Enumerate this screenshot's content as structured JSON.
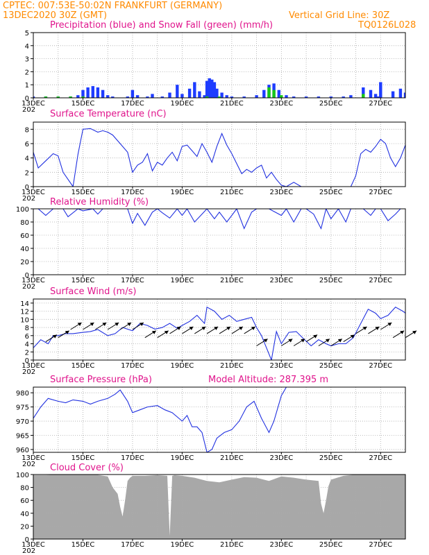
{
  "header": {
    "line1": "CPTEC:   007:53E-50:02N   FRANKFURT (GERMANY)",
    "line2_left": "13DEC2020 30Z (GMT)",
    "line2_right": "Vertical Grid Line: 30Z",
    "code": "TQ0126L028"
  },
  "colors": {
    "header_text": "#ff8a00",
    "title_text": "#e0148c",
    "precip": "#1e3cff",
    "snow": "#18c818",
    "line": "#2030e0",
    "arrow": "#000000",
    "cloud": "#a8a8a8"
  },
  "x_axis": {
    "days": [
      "13DEC",
      "15DEC",
      "17DEC",
      "19DEC",
      "21DEC",
      "23DEC",
      "25DEC",
      "27DEC"
    ],
    "first_tick_fragment": "202"
  },
  "chart_data": [
    {
      "type": "bar",
      "title": "Precipitation (blue) and Snow Fall (green) (mm/h)",
      "ylim": [
        0,
        5
      ],
      "yticks": [
        0,
        1,
        2,
        3,
        4,
        5
      ],
      "x_range": [
        13,
        28
      ],
      "series": [
        {
          "name": "Precipitation",
          "x": [
            13.0,
            13.5,
            14.0,
            14.5,
            14.8,
            15.0,
            15.2,
            15.4,
            15.6,
            15.8,
            16.0,
            16.2,
            16.8,
            17.0,
            17.2,
            17.6,
            17.8,
            18.2,
            18.5,
            18.8,
            19.0,
            19.3,
            19.5,
            19.7,
            19.9,
            20.0,
            20.1,
            20.2,
            20.3,
            20.4,
            20.6,
            20.8,
            21.0,
            21.5,
            22.0,
            22.3,
            22.5,
            22.7,
            22.9,
            23.2,
            23.5,
            24.0,
            24.5,
            25.0,
            25.5,
            25.8,
            26.3,
            26.6,
            26.8,
            26.9,
            27.0,
            27.5,
            27.8,
            28.0
          ],
          "values": [
            0.1,
            0.1,
            0.1,
            0.1,
            0.2,
            0.6,
            0.8,
            0.9,
            0.8,
            0.6,
            0.2,
            0.1,
            0.1,
            0.6,
            0.2,
            0.1,
            0.3,
            0.1,
            0.4,
            1.0,
            0.3,
            0.7,
            1.2,
            0.5,
            0.2,
            1.3,
            1.5,
            1.4,
            1.2,
            0.7,
            0.4,
            0.2,
            0.1,
            0.1,
            0.2,
            0.6,
            1.0,
            1.1,
            0.6,
            0.2,
            0.1,
            0.1,
            0.1,
            0.1,
            0.1,
            0.2,
            0.8,
            0.6,
            0.3,
            0.1,
            1.2,
            0.5,
            0.7,
            0.4
          ]
        },
        {
          "name": "Snow Fall",
          "x": [
            13.5,
            14.0,
            14.5,
            15.0,
            20.0,
            20.5,
            22.5,
            22.7,
            23.0,
            26.3
          ],
          "values": [
            0.1,
            0.1,
            0.1,
            0.1,
            0.1,
            0.1,
            0.8,
            0.6,
            0.2,
            0.3
          ]
        }
      ]
    },
    {
      "type": "line",
      "title": "Surface Temperature (nC)",
      "ylim": [
        0,
        9
      ],
      "yticks": [
        0,
        2,
        4,
        6,
        8
      ],
      "x_range": [
        13,
        28
      ],
      "series": [
        {
          "x": [
            13.0,
            13.2,
            13.5,
            13.8,
            14.0,
            14.2,
            14.6,
            14.8,
            15.0,
            15.3,
            15.6,
            15.8,
            16.0,
            16.2,
            16.5,
            16.8,
            17.0,
            17.2,
            17.4,
            17.6,
            17.8,
            18.0,
            18.2,
            18.4,
            18.6,
            18.8,
            19.0,
            19.2,
            19.4,
            19.6,
            19.8,
            20.0,
            20.2,
            20.4,
            20.6,
            20.8,
            21.0,
            21.2,
            21.4,
            21.6,
            21.8,
            22.0,
            22.2,
            22.4,
            22.6,
            22.8,
            23.0,
            23.2,
            23.5,
            23.8,
            24.0,
            24.5,
            25.0,
            25.3,
            25.6,
            25.8,
            26.0,
            26.2,
            26.4,
            26.6,
            26.8,
            27.0,
            27.2,
            27.4,
            27.6,
            27.8,
            28.0
          ],
          "y": [
            4.8,
            2.6,
            3.6,
            4.6,
            4.3,
            2.0,
            0,
            4.5,
            8.0,
            8.1,
            7.6,
            7.8,
            7.6,
            7.2,
            6.0,
            4.8,
            2.0,
            3.0,
            3.4,
            4.6,
            2.2,
            3.4,
            3.0,
            4.0,
            4.8,
            3.6,
            5.6,
            5.8,
            5.0,
            4.2,
            6.0,
            4.8,
            3.4,
            5.6,
            7.4,
            5.8,
            4.6,
            3.2,
            1.8,
            2.4,
            2.0,
            2.6,
            3.0,
            1.2,
            2.0,
            1.0,
            0.2,
            0.0,
            0.6,
            0,
            0,
            0,
            0,
            0,
            0,
            0,
            1.5,
            4.6,
            5.2,
            4.8,
            5.6,
            6.6,
            6.0,
            4.0,
            2.8,
            4.0,
            5.8
          ]
        }
      ]
    },
    {
      "type": "line",
      "title": "Relative Humidity (%)",
      "ylim": [
        0,
        100
      ],
      "yticks": [
        0,
        20,
        40,
        60,
        80,
        100
      ],
      "x_range": [
        13,
        28
      ],
      "series": [
        {
          "x": [
            13.0,
            13.2,
            13.5,
            13.8,
            14.0,
            14.2,
            14.4,
            14.8,
            15.0,
            15.4,
            15.6,
            15.8,
            16.0,
            16.2,
            16.5,
            16.8,
            17.0,
            17.2,
            17.5,
            17.8,
            18.0,
            18.2,
            18.5,
            18.8,
            19.0,
            19.2,
            19.5,
            19.8,
            20.0,
            20.3,
            20.5,
            20.8,
            21.0,
            21.2,
            21.5,
            21.8,
            22.0,
            22.5,
            23.0,
            23.2,
            23.5,
            23.8,
            24.0,
            24.3,
            24.6,
            24.8,
            25.0,
            25.3,
            25.6,
            25.8,
            26.0,
            26.3,
            26.6,
            26.8,
            27.0,
            27.3,
            27.6,
            27.8,
            28.0
          ],
          "y": [
            100,
            100,
            90,
            100,
            100,
            100,
            88,
            100,
            97,
            100,
            92,
            100,
            100,
            100,
            100,
            100,
            78,
            93,
            75,
            95,
            100,
            94,
            86,
            100,
            90,
            100,
            80,
            92,
            100,
            85,
            95,
            80,
            90,
            100,
            70,
            95,
            100,
            100,
            90,
            100,
            80,
            100,
            100,
            92,
            70,
            100,
            85,
            100,
            80,
            100,
            100,
            100,
            90,
            100,
            100,
            82,
            92,
            100,
            100
          ]
        }
      ]
    },
    {
      "type": "line",
      "title": "Surface Wind (m/s)",
      "ylim": [
        0,
        15
      ],
      "yticks": [
        0,
        2,
        4,
        6,
        8,
        10,
        12,
        14
      ],
      "x_range": [
        13,
        28
      ],
      "series": [
        {
          "x": [
            13.0,
            13.3,
            13.6,
            13.8,
            14.0,
            14.3,
            14.6,
            15.0,
            15.3,
            15.6,
            16.0,
            16.3,
            16.6,
            17.0,
            17.3,
            17.6,
            17.9,
            18.2,
            18.5,
            18.8,
            19.0,
            19.3,
            19.6,
            19.9,
            20.0,
            20.3,
            20.6,
            20.9,
            21.2,
            21.5,
            21.8,
            22.0,
            22.2,
            22.4,
            22.6,
            22.8,
            23.0,
            23.3,
            23.6,
            23.9,
            24.2,
            24.5,
            24.8,
            25.0,
            25.3,
            25.6,
            25.9,
            26.2,
            26.5,
            26.8,
            27.0,
            27.3,
            27.6,
            27.9,
            28.0
          ],
          "y": [
            3,
            5,
            4,
            6,
            6,
            6.5,
            6.5,
            6.8,
            7,
            7.5,
            6,
            6.5,
            8,
            7.2,
            9,
            8.5,
            7.6,
            8,
            9,
            7.8,
            8.5,
            9.5,
            11,
            9,
            13,
            12,
            10,
            11,
            9.5,
            10,
            10.5,
            8,
            6,
            3,
            0,
            7,
            4,
            6.8,
            7,
            5.2,
            3.5,
            5,
            4,
            3.5,
            4,
            4,
            5.5,
            9,
            12.5,
            11.5,
            10.2,
            11,
            13,
            12,
            11.5
          ]
        }
      ],
      "arrows": {
        "x": [
          13.5,
          14.0,
          14.5,
          15.0,
          15.5,
          16.0,
          16.5,
          17.0,
          17.5,
          18.0,
          18.5,
          19.0,
          19.5,
          20.0,
          20.5,
          21.0,
          21.5,
          22.0,
          23.0,
          23.5,
          24.0,
          24.5,
          25.0,
          25.5,
          26.0,
          26.5,
          27.0,
          27.5,
          28.0
        ],
        "speed": [
          8,
          9,
          11,
          11,
          11,
          11,
          11,
          11,
          9,
          9,
          10,
          10,
          10,
          10,
          10,
          10,
          10,
          7,
          7,
          7,
          8,
          7,
          7,
          8,
          10,
          10,
          11,
          9,
          9
        ]
      }
    },
    {
      "type": "line",
      "title": "Surface Pressure (hPa)",
      "subtitle": "Model Altitude: 287.395 m",
      "ylim": [
        959,
        982
      ],
      "yticks": [
        960,
        965,
        970,
        975,
        980
      ],
      "x_range": [
        13,
        28
      ],
      "series": [
        {
          "x": [
            13.0,
            13.3,
            13.6,
            14.0,
            14.3,
            14.6,
            15.0,
            15.3,
            15.6,
            16.0,
            16.3,
            16.5,
            16.8,
            17.0,
            17.3,
            17.6,
            18.0,
            18.3,
            18.6,
            19.0,
            19.2,
            19.4,
            19.6,
            19.8,
            20.0,
            20.2,
            20.4,
            20.7,
            21.0,
            21.3,
            21.6,
            21.9,
            22.2,
            22.5,
            22.7,
            23.0,
            23.2
          ],
          "y": [
            971,
            975,
            978,
            977,
            976.5,
            977.5,
            977,
            976,
            977,
            978,
            979.5,
            981,
            977,
            973,
            974,
            975,
            975.5,
            974,
            973,
            970,
            972,
            968,
            968,
            966,
            959,
            960,
            964,
            966,
            967,
            970,
            975,
            977,
            971,
            966,
            970,
            979,
            982
          ]
        }
      ]
    },
    {
      "type": "area",
      "title": "Cloud Cover (%)",
      "ylim": [
        0,
        100
      ],
      "yticks": [
        0,
        20,
        40,
        60,
        80,
        100
      ],
      "x_range": [
        13,
        28
      ],
      "series": [
        {
          "x": [
            13.0,
            13.5,
            14.0,
            14.5,
            15.0,
            15.5,
            16.0,
            16.2,
            16.4,
            16.5,
            16.6,
            16.7,
            16.8,
            16.9,
            17.0,
            17.5,
            18.0,
            18.4,
            18.5,
            18.6,
            18.7,
            19.0,
            19.5,
            20.0,
            20.5,
            21.0,
            21.5,
            22.0,
            22.5,
            23.0,
            23.5,
            24.0,
            24.5,
            24.6,
            24.7,
            24.8,
            24.9,
            25.0,
            25.5,
            26.0,
            26.5,
            27.0,
            27.5,
            28.0
          ],
          "y": [
            99,
            99,
            100,
            100,
            100,
            100,
            97,
            80,
            70,
            50,
            35,
            60,
            90,
            95,
            98,
            98,
            99,
            98,
            5,
            98,
            99,
            98,
            95,
            90,
            88,
            92,
            96,
            95,
            90,
            97,
            95,
            92,
            90,
            55,
            40,
            60,
            82,
            92,
            98,
            100,
            100,
            100,
            100,
            100
          ]
        }
      ]
    }
  ]
}
